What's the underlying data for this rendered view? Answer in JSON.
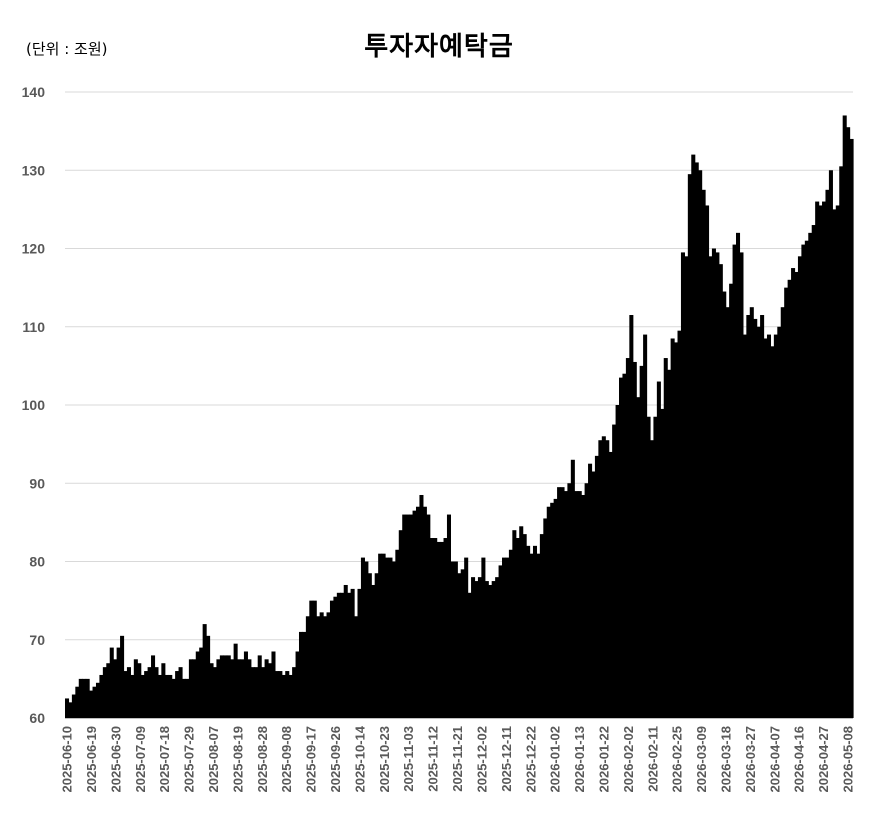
{
  "chart_data": {
    "type": "bar",
    "title": "투자자예탁금",
    "unit_label": "(단위 : 조원)",
    "xlabel": "",
    "ylabel": "",
    "ylim": [
      60,
      140
    ],
    "yticks": [
      60,
      70,
      80,
      90,
      100,
      110,
      120,
      130,
      140
    ],
    "grid": "horizontal",
    "legend": "none",
    "bar_color": "#000000",
    "grid_color": "#d9d9d9",
    "tick_color": "#595959",
    "x_tick_labels": [
      "2025-06-10",
      "2025-06-19",
      "2025-06-30",
      "2025-07-09",
      "2025-07-18",
      "2025-07-29",
      "2025-08-07",
      "2025-08-19",
      "2025-08-28",
      "2025-09-08",
      "2025-09-17",
      "2025-09-26",
      "2025-10-14",
      "2025-10-23",
      "2025-11-03",
      "2025-11-12",
      "2025-11-21",
      "2025-12-02",
      "2025-12-11",
      "2025-12-22",
      "2026-01-02",
      "2026-01-13",
      "2026-01-22",
      "2026-02-02",
      "2026-02-11",
      "2026-02-25",
      "2026-03-09",
      "2026-03-18",
      "2026-03-27",
      "2026-04-07",
      "2026-04-16",
      "2026-04-27",
      "2026-05-08"
    ],
    "values": [
      62.5,
      62.0,
      63.0,
      64.0,
      65.0,
      65.0,
      65.0,
      63.5,
      64.0,
      64.5,
      65.5,
      66.5,
      67.0,
      69.0,
      67.5,
      69.0,
      70.5,
      66.0,
      66.5,
      65.5,
      67.5,
      67.0,
      65.5,
      66.0,
      66.5,
      68.0,
      66.5,
      65.5,
      67.0,
      65.5,
      65.5,
      65.0,
      66.0,
      66.5,
      65.0,
      65.0,
      67.5,
      67.5,
      68.5,
      69.0,
      72.0,
      70.5,
      67.0,
      66.5,
      67.5,
      68.0,
      68.0,
      68.0,
      67.5,
      69.5,
      67.5,
      67.5,
      68.5,
      67.5,
      66.5,
      66.5,
      68.0,
      66.5,
      67.5,
      67.0,
      68.5,
      66.0,
      66.0,
      65.5,
      66.0,
      65.5,
      66.5,
      68.5,
      71.0,
      71.0,
      73.0,
      75.0,
      75.0,
      73.0,
      73.5,
      73.0,
      73.5,
      75.0,
      75.5,
      76.0,
      76.0,
      77.0,
      76.0,
      76.5,
      73.0,
      76.5,
      80.5,
      80.0,
      78.5,
      77.0,
      78.5,
      81.0,
      81.0,
      80.5,
      80.5,
      80.0,
      81.5,
      84.0,
      86.0,
      86.0,
      86.0,
      86.5,
      87.0,
      88.5,
      87.0,
      86.0,
      83.0,
      83.0,
      82.5,
      82.5,
      83.0,
      86.0,
      80.0,
      80.0,
      78.5,
      79.0,
      80.5,
      76.0,
      78.0,
      77.5,
      78.0,
      80.5,
      77.5,
      77.0,
      77.5,
      78.0,
      79.5,
      80.5,
      80.5,
      81.5,
      84.0,
      83.0,
      84.5,
      83.5,
      82.0,
      81.0,
      82.0,
      81.0,
      83.5,
      85.5,
      87.0,
      87.5,
      88.0,
      89.5,
      89.5,
      89.0,
      90.0,
      93.0,
      89.0,
      89.0,
      88.5,
      90.0,
      92.5,
      91.5,
      93.5,
      95.5,
      96.0,
      95.5,
      94.0,
      97.5,
      100.0,
      103.5,
      104.0,
      106.0,
      111.5,
      105.5,
      101.0,
      105.0,
      109.0,
      98.5,
      95.5,
      98.5,
      103.0,
      99.5,
      106.0,
      104.5,
      108.5,
      108.0,
      109.5,
      119.5,
      119.0,
      129.5,
      132.0,
      131.0,
      130.0,
      127.5,
      125.5,
      119.0,
      120.0,
      119.5,
      118.0,
      114.5,
      112.5,
      115.5,
      120.5,
      122.0,
      119.5,
      109.0,
      111.5,
      112.5,
      111.0,
      110.0,
      111.5,
      108.5,
      109.0,
      107.5,
      109.0,
      110.0,
      112.5,
      115.0,
      116.0,
      117.5,
      117.0,
      119.0,
      120.5,
      121.0,
      122.0,
      123.0,
      126.0,
      125.5,
      126.0,
      127.5,
      130.0,
      125.0,
      125.5,
      130.5,
      137.0,
      135.5,
      134.0
    ]
  }
}
